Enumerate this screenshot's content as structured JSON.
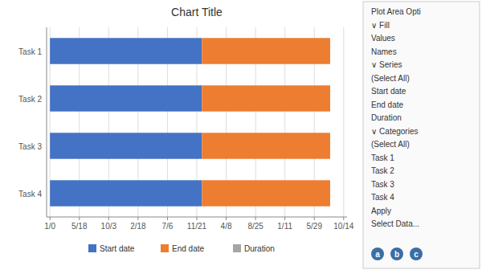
{
  "chart_data": {
    "type": "bar",
    "title": "Chart Title",
    "orientation": "horizontal",
    "stacked": true,
    "categories": [
      "Task 4",
      "Task 3",
      "Task 2",
      "Task 1"
    ],
    "series": [
      {
        "name": "Start date",
        "color": "#4472C4",
        "values": [
          4.5,
          4.5,
          4.5,
          4.5
        ]
      },
      {
        "name": "End date",
        "color": "#ED7D31",
        "values": [
          3.8,
          3.8,
          3.8,
          3.8
        ]
      },
      {
        "name": "Duration",
        "color": "#A5A5A5",
        "values": [
          null,
          null,
          null,
          null
        ]
      }
    ],
    "xlim": [
      -0.1,
      8.8
    ],
    "xticks": [
      {
        "value": 0,
        "label": "1/0"
      },
      {
        "value": 0.87,
        "label": "5/18"
      },
      {
        "value": 1.74,
        "label": "10/3"
      },
      {
        "value": 2.61,
        "label": "2/18"
      },
      {
        "value": 3.48,
        "label": "7/6"
      },
      {
        "value": 4.35,
        "label": "11/21"
      },
      {
        "value": 5.22,
        "label": "4/8"
      },
      {
        "value": 6.09,
        "label": "8/25"
      },
      {
        "value": 6.96,
        "label": "1/11"
      },
      {
        "value": 7.83,
        "label": "5/29"
      },
      {
        "value": 8.7,
        "label": "10/14"
      }
    ],
    "grid": true,
    "legend": "bottom",
    "annotations": [
      "Plot Area Opti",
      "∨ Fill",
      "Values",
      "Names",
      "∨ Series",
      "(Select All)",
      "Start date",
      "End date",
      "Duration",
      "∨ Categories",
      "(Select All)",
      "Task 1",
      "Task 2",
      "Task 3",
      "Task 4",
      "Apply",
      "Select Data...",
      "a",
      "b",
      "c"
    ]
  }
}
